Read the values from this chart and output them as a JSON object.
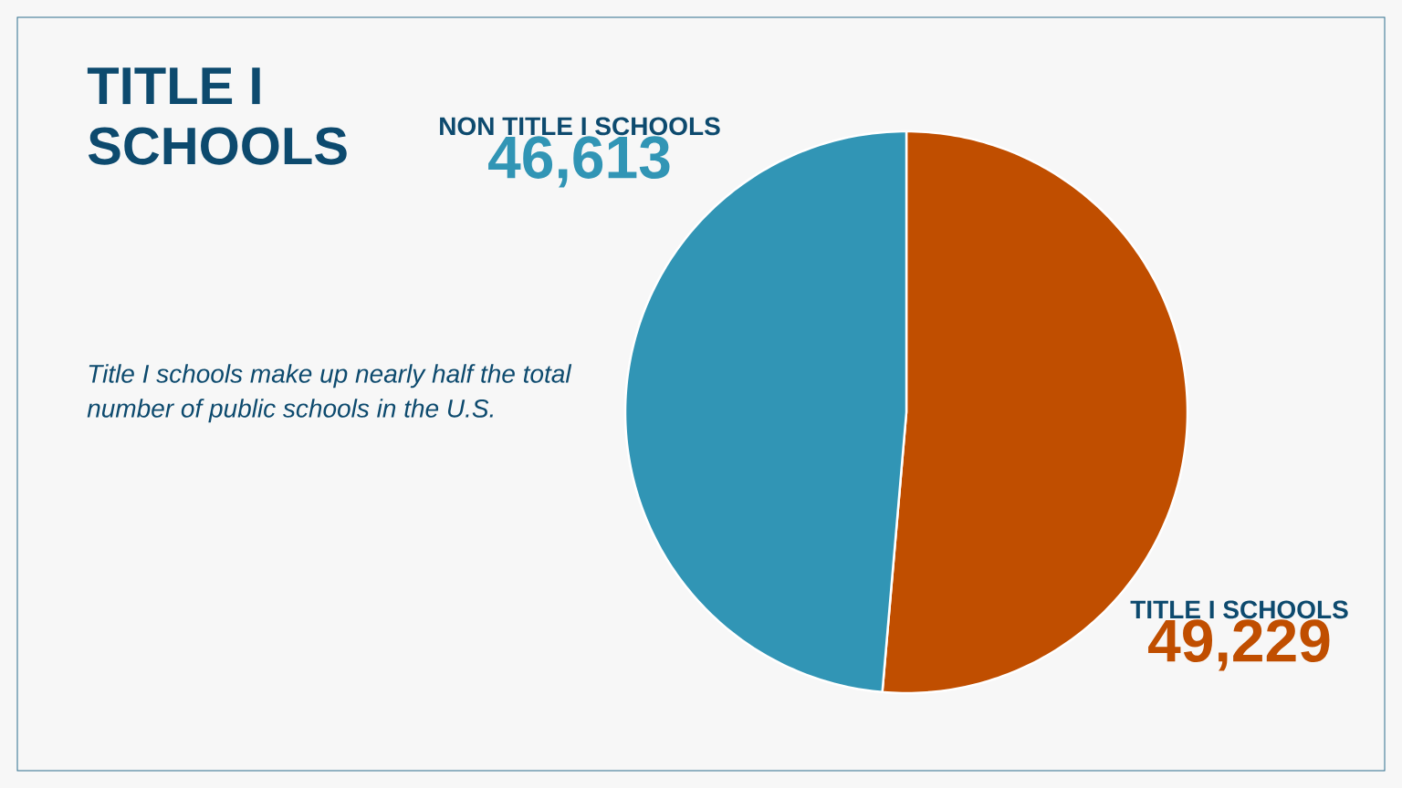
{
  "chart_data": {
    "type": "pie",
    "title": "TITLE I SCHOOLS",
    "subtitle": "*Title I schools make up nearly half the total number of public schools in the U.S.*",
    "categories": [
      "TITLE I SCHOOLS",
      "NON TITLE I SCHOOLS"
    ],
    "values": [
      49229,
      46613
    ],
    "value_labels": [
      "49,229",
      "46,613"
    ],
    "colors": [
      "#c04e00",
      "#3195b5"
    ]
  }
}
